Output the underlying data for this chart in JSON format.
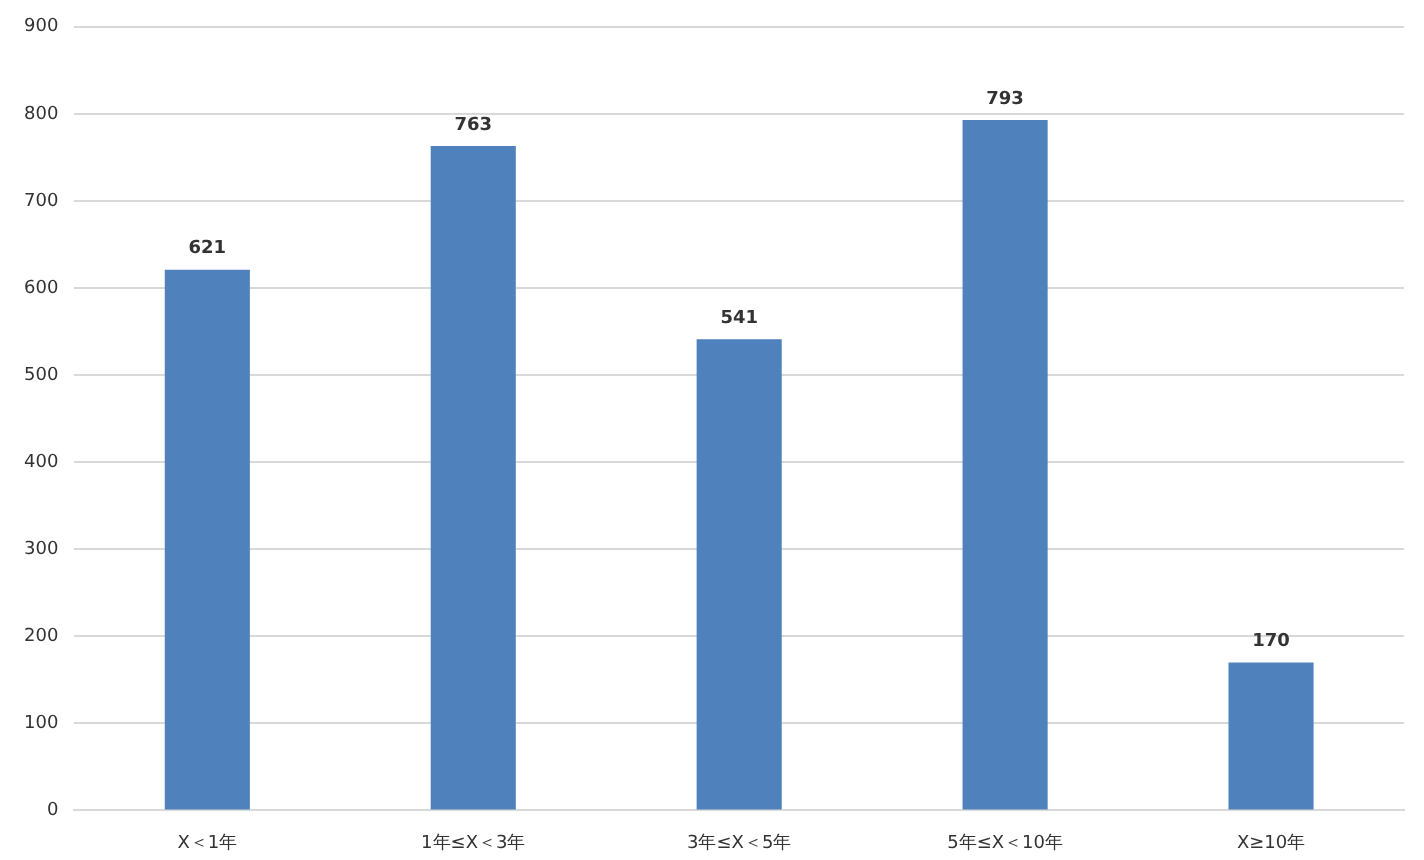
{
  "chart_data": {
    "type": "bar",
    "categories": [
      "X＜1年",
      "1年≤X＜3年",
      "3年≤X＜5年",
      "5年≤X＜10年",
      "X≥10年"
    ],
    "values": [
      621,
      763,
      541,
      793,
      170
    ],
    "color": "#4f81bd",
    "ylim": [
      0,
      900
    ],
    "yticks": [
      0,
      100,
      200,
      300,
      400,
      500,
      600,
      700,
      800,
      900
    ],
    "grid": "y",
    "data_labels": true
  }
}
